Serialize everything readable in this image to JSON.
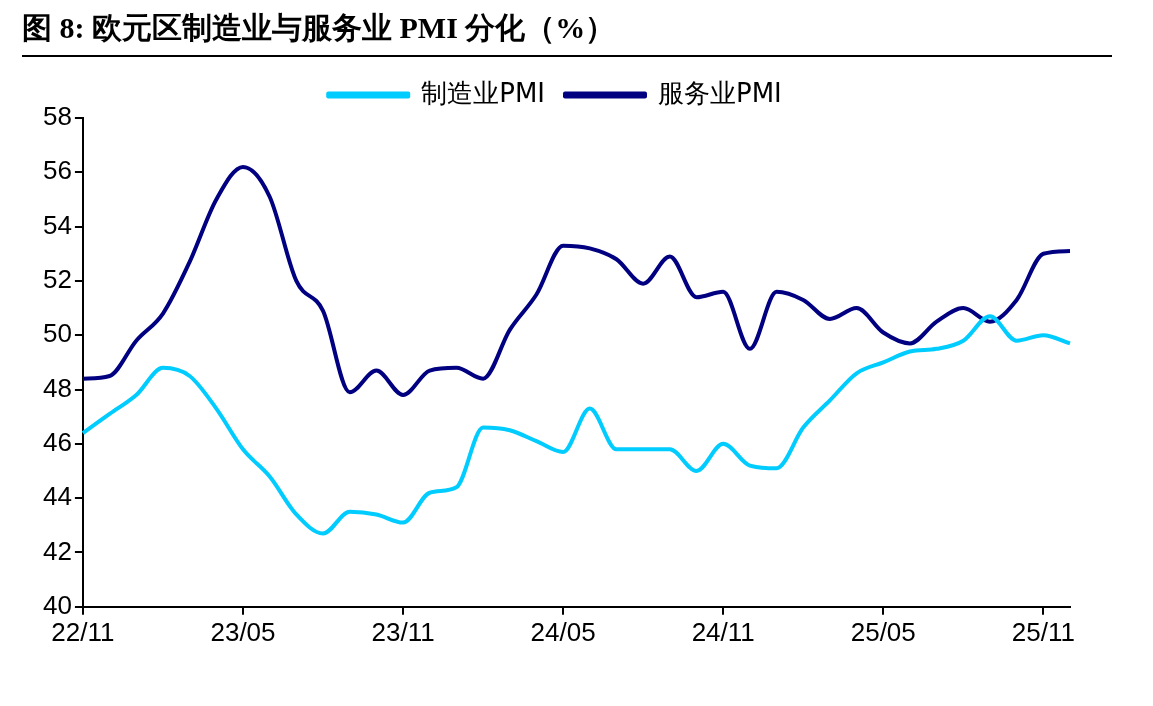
{
  "chart_data": {
    "type": "line",
    "title": "图 8:  欧元区制造业与服务业 PMI 分化（%）",
    "categories": [
      "22/11",
      null,
      null,
      null,
      null,
      null,
      "23/05",
      null,
      null,
      null,
      null,
      null,
      "23/11",
      null,
      null,
      null,
      null,
      null,
      "24/05",
      null,
      null,
      null,
      null,
      null,
      "24/11",
      null,
      null,
      null,
      null,
      null,
      "25/05",
      null,
      null,
      null,
      null,
      null,
      "25/11",
      null
    ],
    "series": [
      {
        "name": "制造业PMI",
        "color": "#00ccff",
        "values": [
          46.4,
          47.1,
          47.8,
          48.8,
          48.5,
          47.3,
          45.8,
          44.8,
          43.4,
          42.7,
          43.5,
          43.4,
          43.1,
          44.2,
          44.4,
          46.6,
          46.5,
          46.1,
          45.7,
          47.3,
          45.8,
          45.8,
          45.8,
          45.0,
          46.0,
          45.2,
          45.1,
          46.6,
          47.6,
          48.6,
          49.0,
          49.4,
          49.5,
          49.8,
          50.7,
          49.8,
          50.0,
          49.7
        ]
      },
      {
        "name": "服务业PMI",
        "color": "#000080",
        "values": [
          48.4,
          48.5,
          49.8,
          50.8,
          52.7,
          55.0,
          56.2,
          55.1,
          52.0,
          50.9,
          47.9,
          48.7,
          47.8,
          48.7,
          48.8,
          48.4,
          50.2,
          51.5,
          53.3,
          53.2,
          52.8,
          51.9,
          52.9,
          51.4,
          51.6,
          49.5,
          51.6,
          51.3,
          50.6,
          51.0,
          50.1,
          49.7,
          50.5,
          51.0,
          50.5,
          51.3,
          53.0,
          53.1
        ]
      }
    ],
    "ylim": [
      40,
      58
    ],
    "yticks": [
      40,
      42,
      44,
      46,
      48,
      50,
      52,
      54,
      56,
      58
    ],
    "grid": false,
    "legend": "top",
    "marker": "none",
    "line_style": "solid"
  }
}
